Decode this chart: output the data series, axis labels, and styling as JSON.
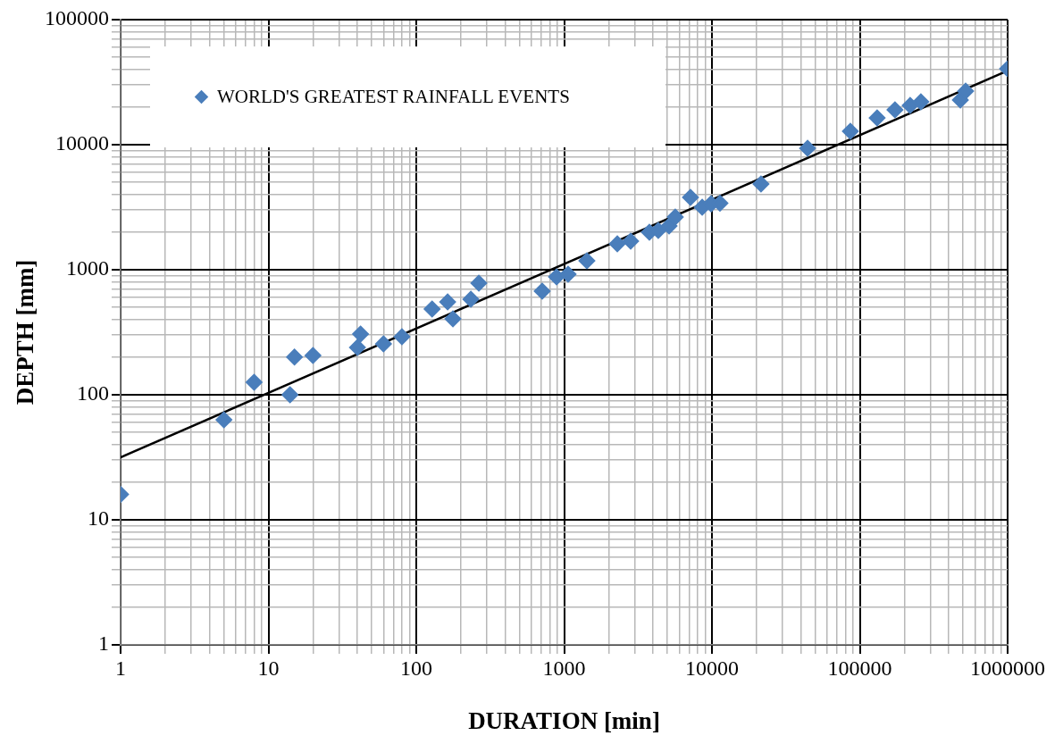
{
  "chart_data": {
    "type": "scatter",
    "xlabel": "DURATION [min]",
    "ylabel": "DEPTH [mm]",
    "log": "xy",
    "grid": true,
    "legend": "top left",
    "marker": "diamond",
    "xlim": [
      1,
      1000000
    ],
    "ylim": [
      1,
      100000
    ],
    "xticks": [
      1,
      {
        "value": 2,
        "label": null
      },
      {
        "value": 3,
        "label": null
      },
      {
        "value": 4,
        "label": null
      },
      {
        "value": 5,
        "label": null
      },
      {
        "value": 6,
        "label": null
      },
      {
        "value": 7,
        "label": null
      },
      {
        "value": 8,
        "label": null
      },
      {
        "value": 9,
        "label": null
      },
      10,
      {
        "value": 20,
        "label": null
      },
      {
        "value": 30,
        "label": null
      },
      {
        "value": 40,
        "label": null
      },
      {
        "value": 50,
        "label": null
      },
      {
        "value": 60,
        "label": null
      },
      {
        "value": 70,
        "label": null
      },
      {
        "value": 80,
        "label": null
      },
      {
        "value": 90,
        "label": null
      },
      100,
      {
        "value": 200,
        "label": null
      },
      {
        "value": 300,
        "label": null
      },
      {
        "value": 400,
        "label": null
      },
      {
        "value": 500,
        "label": null
      },
      {
        "value": 600,
        "label": null
      },
      {
        "value": 700,
        "label": null
      },
      {
        "value": 800,
        "label": null
      },
      {
        "value": 900,
        "label": null
      },
      1000,
      {
        "value": 2000,
        "label": null
      },
      {
        "value": 3000,
        "label": null
      },
      {
        "value": 4000,
        "label": null
      },
      {
        "value": 5000,
        "label": null
      },
      {
        "value": 6000,
        "label": null
      },
      {
        "value": 7000,
        "label": null
      },
      {
        "value": 8000,
        "label": null
      },
      {
        "value": 9000,
        "label": null
      },
      10000,
      {
        "value": 20000,
        "label": null
      },
      {
        "value": 30000,
        "label": null
      },
      {
        "value": 40000,
        "label": null
      },
      {
        "value": 50000,
        "label": null
      },
      {
        "value": 60000,
        "label": null
      },
      {
        "value": 70000,
        "label": null
      },
      {
        "value": 80000,
        "label": null
      },
      {
        "value": 90000,
        "label": null
      },
      100000,
      {
        "value": 200000,
        "label": null
      },
      {
        "value": 300000,
        "label": null
      },
      {
        "value": 400000,
        "label": null
      },
      {
        "value": 500000,
        "label": null
      },
      {
        "value": 600000,
        "label": null
      },
      {
        "value": 700000,
        "label": null
      },
      {
        "value": 800000,
        "label": null
      },
      {
        "value": 900000,
        "label": null
      },
      1000000
    ],
    "yticks": [
      1,
      {
        "value": 2,
        "label": null
      },
      {
        "value": 3,
        "label": null
      },
      {
        "value": 4,
        "label": null
      },
      {
        "value": 5,
        "label": null
      },
      {
        "value": 6,
        "label": null
      },
      {
        "value": 7,
        "label": null
      },
      {
        "value": 8,
        "label": null
      },
      {
        "value": 9,
        "label": null
      },
      10,
      {
        "value": 20,
        "label": null
      },
      {
        "value": 30,
        "label": null
      },
      {
        "value": 40,
        "label": null
      },
      {
        "value": 50,
        "label": null
      },
      {
        "value": 60,
        "label": null
      },
      {
        "value": 70,
        "label": null
      },
      {
        "value": 80,
        "label": null
      },
      {
        "value": 90,
        "label": null
      },
      100,
      {
        "value": 200,
        "label": null
      },
      {
        "value": 300,
        "label": null
      },
      {
        "value": 400,
        "label": null
      },
      {
        "value": 500,
        "label": null
      },
      {
        "value": 600,
        "label": null
      },
      {
        "value": 700,
        "label": null
      },
      {
        "value": 800,
        "label": null
      },
      {
        "value": 900,
        "label": null
      },
      1000,
      {
        "value": 2000,
        "label": null
      },
      {
        "value": 3000,
        "label": null
      },
      {
        "value": 4000,
        "label": null
      },
      {
        "value": 5000,
        "label": null
      },
      {
        "value": 6000,
        "label": null
      },
      {
        "value": 7000,
        "label": null
      },
      {
        "value": 8000,
        "label": null
      },
      {
        "value": 9000,
        "label": null
      },
      10000,
      {
        "value": 20000,
        "label": null
      },
      {
        "value": 30000,
        "label": null
      },
      {
        "value": 40000,
        "label": null
      },
      {
        "value": 50000,
        "label": null
      },
      {
        "value": 60000,
        "label": null
      },
      {
        "value": 70000,
        "label": null
      },
      {
        "value": 80000,
        "label": null
      },
      {
        "value": 90000,
        "label": null
      },
      100000
    ],
    "series": [
      {
        "name": "WORLD'S GREATEST RAINFALL EVENTS",
        "color": "#4a7ebb",
        "x": [
          1,
          5,
          8,
          14,
          15,
          20,
          40,
          42,
          60,
          80,
          128,
          163,
          177,
          234,
          265,
          711,
          889,
          1064,
          1426,
          2290,
          2820,
          3775,
          4335,
          5130,
          5650,
          7160,
          8590,
          9870,
          11330,
          21470,
          44350,
          86400,
          131000,
          173000,
          219000,
          259000,
          479000,
          520000,
          1000000
        ],
        "values": [
          16,
          63,
          126,
          100,
          200,
          206,
          239,
          306,
          255,
          291,
          485,
          553,
          405,
          581,
          781,
          674,
          877,
          921,
          1179,
          1610,
          1694,
          1995,
          2060,
          2240,
          2640,
          3790,
          3160,
          3370,
          3400,
          4850,
          9360,
          12800,
          16370,
          19000,
          20600,
          22000,
          22770,
          26800,
          40500
        ]
      },
      {
        "type": "line",
        "color": "#000000",
        "marker": "none",
        "line_style": "solid",
        "x": [
          1,
          1000000
        ],
        "values": [
          31.6,
          39000
        ]
      }
    ]
  }
}
